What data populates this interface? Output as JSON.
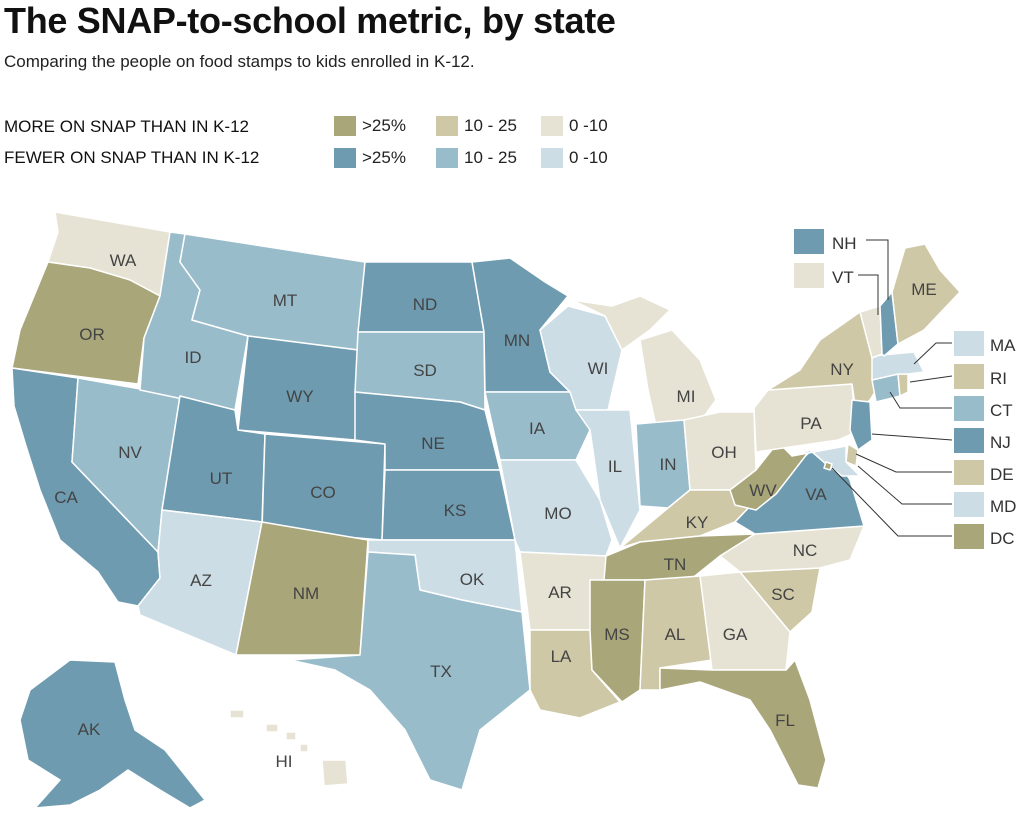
{
  "title": "The SNAP-to-school metric, by state",
  "subtitle": "Comparing the people on food stamps to kids enrolled in K-12.",
  "legend": {
    "more_label": "MORE ON SNAP THAN IN K-12",
    "fewer_label": "FEWER ON SNAP THAN IN K-12",
    "bins": [
      ">25%",
      "10 - 25",
      "0 -10"
    ],
    "more_colors": [
      "#a9a67a",
      "#cfc8a6",
      "#e6e3d4"
    ],
    "fewer_colors": [
      "#6e9bb0",
      "#99bccb",
      "#ccdde5"
    ]
  },
  "colors": {
    "more_gt25": "#a9a67a",
    "more_10_25": "#cfc8a6",
    "more_0_10": "#e6e3d4",
    "fewer_gt25": "#6e9bb0",
    "fewer_10_25": "#99bccb",
    "fewer_0_10": "#ccdde5"
  },
  "states": {
    "WA": "more_0_10",
    "OR": "more_gt25",
    "CA": "fewer_gt25",
    "NV": "fewer_10_25",
    "ID": "fewer_10_25",
    "MT": "fewer_10_25",
    "WY": "fewer_gt25",
    "UT": "fewer_gt25",
    "AZ": "fewer_0_10",
    "CO": "fewer_gt25",
    "NM": "more_gt25",
    "ND": "fewer_gt25",
    "SD": "fewer_10_25",
    "NE": "fewer_gt25",
    "KS": "fewer_gt25",
    "OK": "fewer_0_10",
    "TX": "fewer_10_25",
    "MN": "fewer_gt25",
    "IA": "fewer_10_25",
    "MO": "fewer_0_10",
    "AR": "more_0_10",
    "LA": "more_10_25",
    "WI": "fewer_0_10",
    "IL": "fewer_0_10",
    "MI": "more_0_10",
    "IN": "fewer_10_25",
    "OH": "more_0_10",
    "KY": "more_10_25",
    "TN": "more_gt25",
    "MS": "more_gt25",
    "AL": "more_10_25",
    "GA": "more_0_10",
    "FL": "more_gt25",
    "SC": "more_10_25",
    "NC": "more_0_10",
    "VA": "fewer_gt25",
    "WV": "more_gt25",
    "PA": "more_0_10",
    "NY": "more_10_25",
    "ME": "more_10_25",
    "VT": "more_0_10",
    "NH": "fewer_gt25",
    "MA": "fewer_0_10",
    "RI": "more_10_25",
    "CT": "fewer_10_25",
    "NJ": "fewer_gt25",
    "DE": "more_10_25",
    "MD": "fewer_0_10",
    "DC": "more_gt25",
    "AK": "fewer_gt25",
    "HI": "more_0_10"
  },
  "state_labels": {
    "WA": "WA",
    "OR": "OR",
    "CA": "CA",
    "NV": "NV",
    "ID": "ID",
    "MT": "MT",
    "WY": "WY",
    "UT": "UT",
    "AZ": "AZ",
    "CO": "CO",
    "NM": "NM",
    "ND": "ND",
    "SD": "SD",
    "NE": "NE",
    "KS": "KS",
    "OK": "OK",
    "TX": "TX",
    "MN": "MN",
    "IA": "IA",
    "MO": "MO",
    "AR": "AR",
    "LA": "LA",
    "WI": "WI",
    "IL": "IL",
    "MI": "MI",
    "IN": "IN",
    "OH": "OH",
    "KY": "KY",
    "TN": "TN",
    "MS": "MS",
    "AL": "AL",
    "GA": "GA",
    "FL": "FL",
    "SC": "SC",
    "NC": "NC",
    "VA": "VA",
    "WV": "WV",
    "PA": "PA",
    "NY": "NY",
    "ME": "ME",
    "AK": "AK",
    "HI": "HI"
  },
  "callout_labels": {
    "NH": "NH",
    "VT": "VT",
    "MA": "MA",
    "RI": "RI",
    "CT": "CT",
    "NJ": "NJ",
    "DE": "DE",
    "MD": "MD",
    "DC": "DC"
  }
}
